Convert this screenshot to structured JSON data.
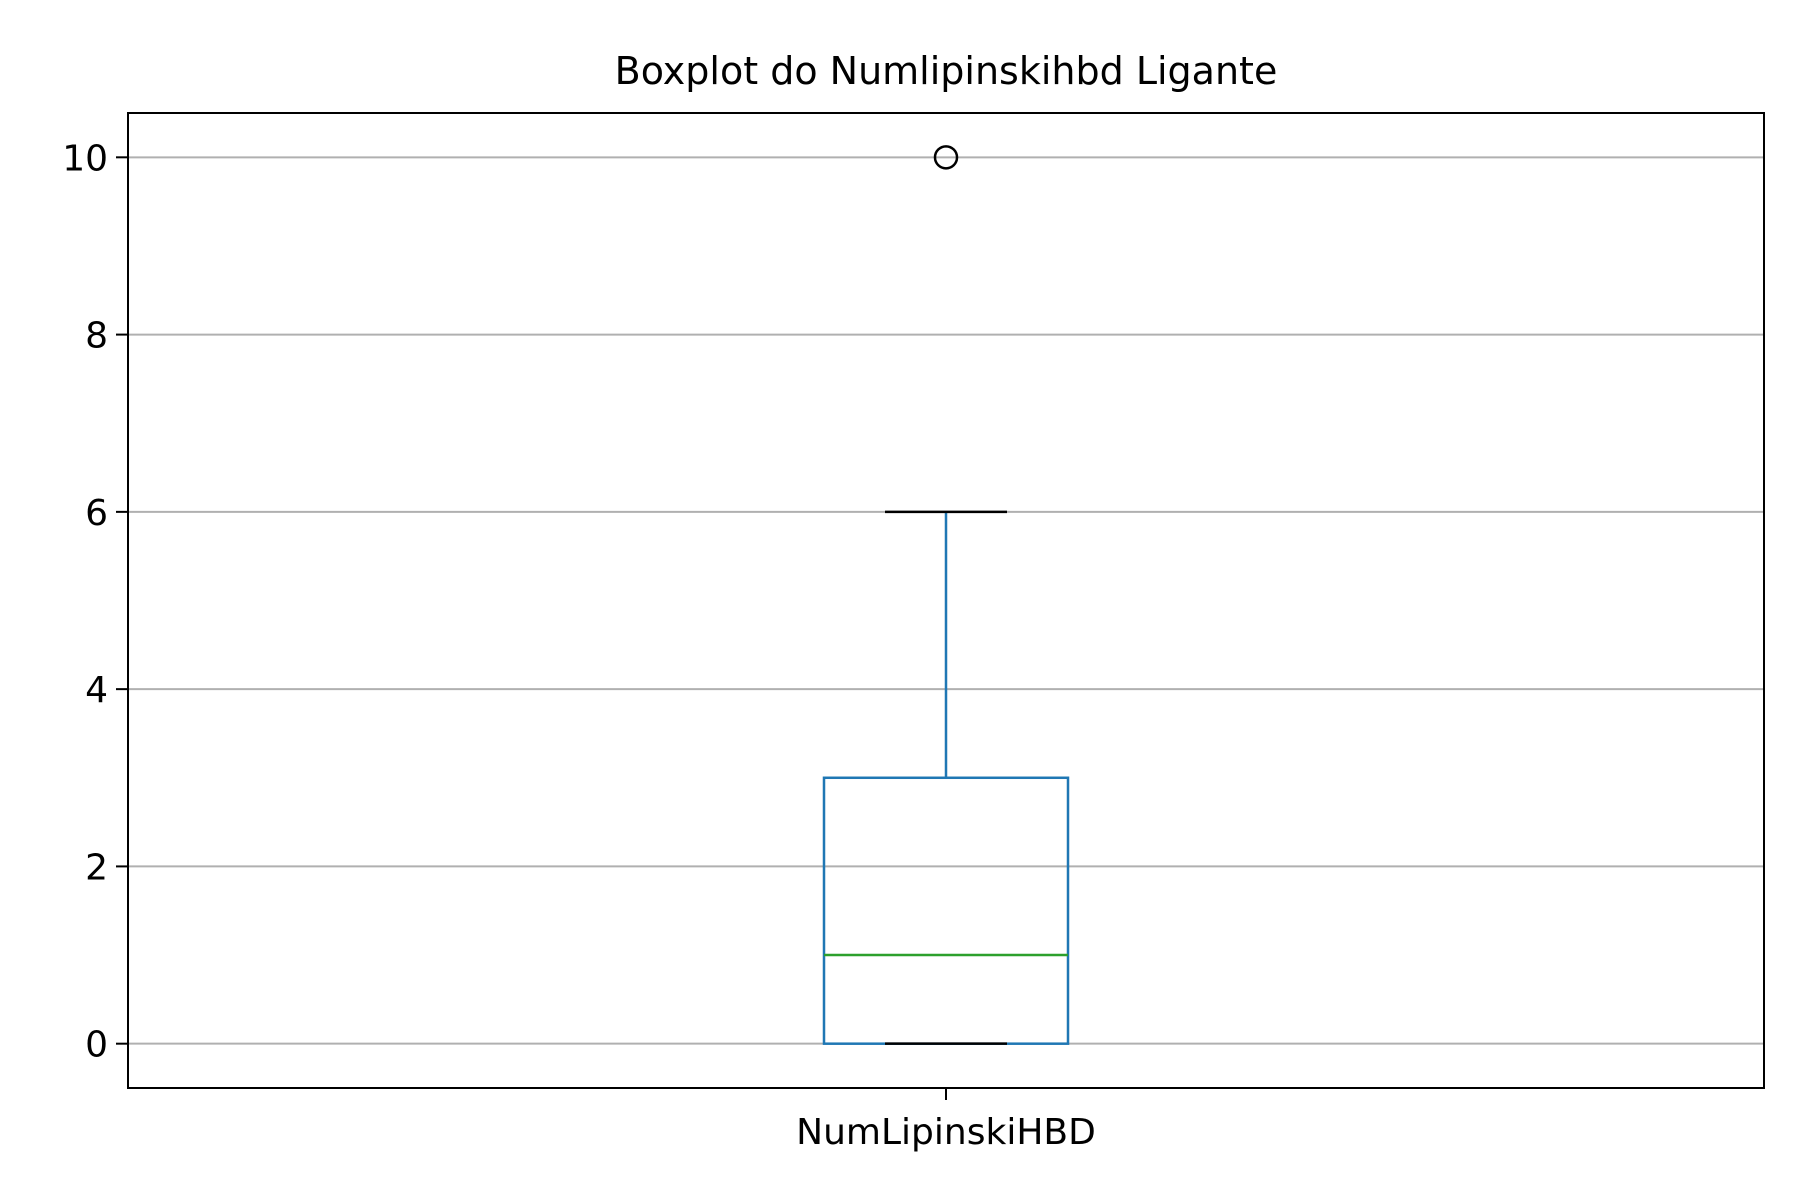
{
  "chart_data": {
    "type": "boxplot",
    "title": "Boxplot do Numlipinskihbd Ligante",
    "xlabel": "",
    "ylabel": "",
    "ylim": [
      -0.5,
      10.5
    ],
    "yticks": [
      0,
      2,
      4,
      6,
      8,
      10
    ],
    "grid": "y",
    "categories": [
      "NumLipinskiHBD"
    ],
    "boxes": [
      {
        "label": "NumLipinskiHBD",
        "whisker_low": 0,
        "q1": 0,
        "median": 1,
        "q3": 3,
        "whisker_high": 6,
        "outliers": [
          10
        ]
      }
    ],
    "colors": {
      "box": "#1f77b4",
      "median": "#2ca02c",
      "cap": "#000000",
      "grid": "#b0b0b0",
      "outlier": "#000000"
    }
  }
}
